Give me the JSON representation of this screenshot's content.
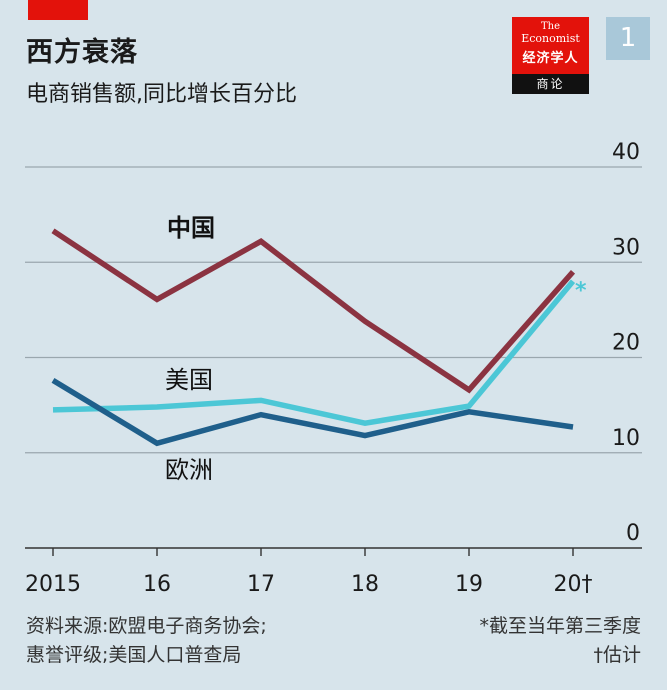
{
  "header": {
    "title": "西方衰落",
    "subtitle": "电商销售额,同比增长百分比"
  },
  "logo": {
    "line1": "The",
    "line2": "Economist",
    "line3": "经济学人",
    "bottom": "商论"
  },
  "badge": "1",
  "colors": {
    "background": "#d7e4eb",
    "accent_red": "#e3120b",
    "china": "#8b3341",
    "usa": "#4cc7d6",
    "europe": "#1f5f8b",
    "grid": "#9aa7ae"
  },
  "chart_data": {
    "type": "line",
    "x": [
      "2015",
      "16",
      "17",
      "18",
      "19",
      "20†"
    ],
    "ylim": [
      0,
      40
    ],
    "yticks": [
      "0",
      "10",
      "20",
      "30",
      "40"
    ],
    "y_axis_side": "right",
    "grid": true,
    "series": [
      {
        "name": "中国",
        "values": [
          33.3,
          26.1,
          32.2,
          23.8,
          16.6,
          29.0
        ]
      },
      {
        "name": "美国",
        "values": [
          14.5,
          14.8,
          15.5,
          13.1,
          14.9,
          28.0
        ]
      },
      {
        "name": "欧洲",
        "values": [
          17.6,
          11.0,
          14.0,
          11.8,
          14.3,
          12.7
        ]
      }
    ],
    "annotations": [
      {
        "text": "*",
        "series": "美国"
      }
    ]
  },
  "footer": {
    "source_line1": "资料来源:欧盟电子商务协会;",
    "source_line2": "惠誉评级;美国人口普查局",
    "note_line1": "*截至当年第三季度",
    "note_line2": "†估计"
  }
}
